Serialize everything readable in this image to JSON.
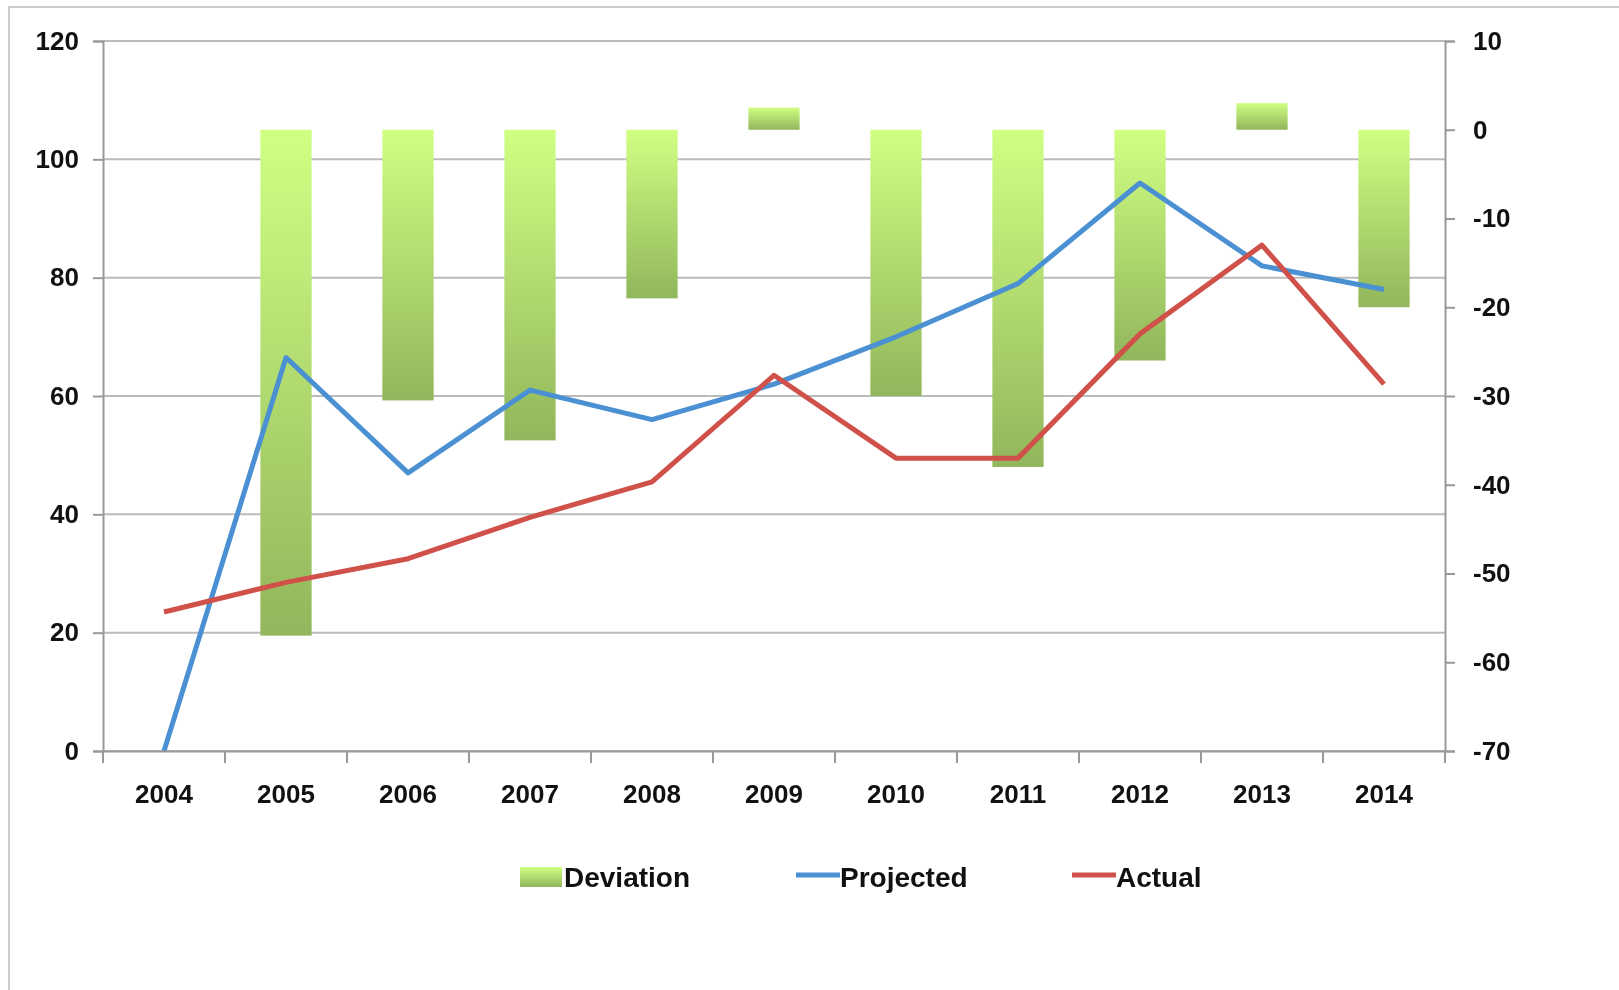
{
  "chart_data": {
    "type": "bar",
    "categories": [
      "2004",
      "2005",
      "2006",
      "2007",
      "2008",
      "2009",
      "2010",
      "2011",
      "2012",
      "2013",
      "2014"
    ],
    "series": [
      {
        "name": "Deviation",
        "axis": "y2",
        "color": "#a8d26a",
        "values": [
          null,
          -57,
          -30.5,
          -35,
          -19,
          2.5,
          -30,
          -38,
          -26,
          3,
          -20
        ]
      },
      {
        "name": "Projected",
        "type": "line",
        "color": "#4a90d2",
        "values": [
          0,
          66.5,
          47,
          61,
          56,
          62,
          70,
          79,
          96,
          82,
          78
        ]
      },
      {
        "name": "Actual",
        "type": "line",
        "color": "#d0504a",
        "values": [
          23.5,
          28.5,
          32.5,
          39.5,
          45.5,
          63.5,
          49.5,
          49.5,
          70.5,
          85.5,
          62
        ]
      }
    ],
    "ylim": [
      0,
      120
    ],
    "yticks": [
      0,
      20,
      40,
      60,
      80,
      100,
      120
    ],
    "y2lim": [
      -70,
      10
    ],
    "y2ticks": [
      -70,
      -60,
      -50,
      -40,
      -30,
      -20,
      -10,
      0,
      10
    ],
    "grid": "y",
    "legend": "bottom",
    "marker": "none",
    "line_style": "solid"
  }
}
